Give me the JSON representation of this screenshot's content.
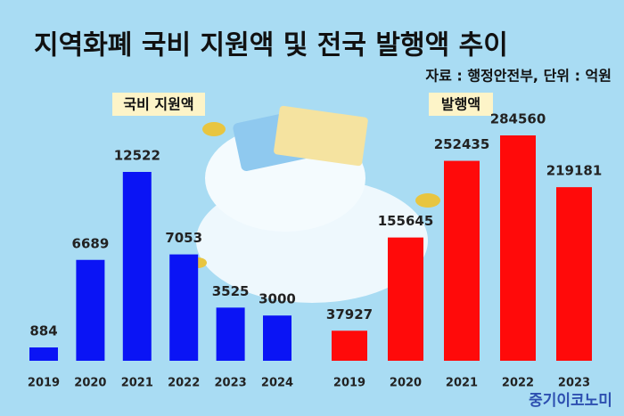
{
  "title": "지역화폐 국비 지원액 및 전국 발행액 추이",
  "subtitle": "자료 : 행정안전부, 단위 : 억원",
  "watermark": "중기이코노미",
  "chart_data": [
    {
      "type": "bar",
      "title": "국비 지원액",
      "categories": [
        "2019",
        "2020",
        "2021",
        "2022",
        "2023",
        "2024"
      ],
      "values": [
        884,
        6689,
        12522,
        7053,
        3525,
        3000
      ],
      "color": "#0a14f5"
    },
    {
      "type": "bar",
      "title": "발행액",
      "categories": [
        "2019",
        "2020",
        "2021",
        "2022",
        "2023"
      ],
      "values": [
        37927,
        155645,
        252435,
        284560,
        219181
      ],
      "color": "#ff0a0a"
    }
  ]
}
